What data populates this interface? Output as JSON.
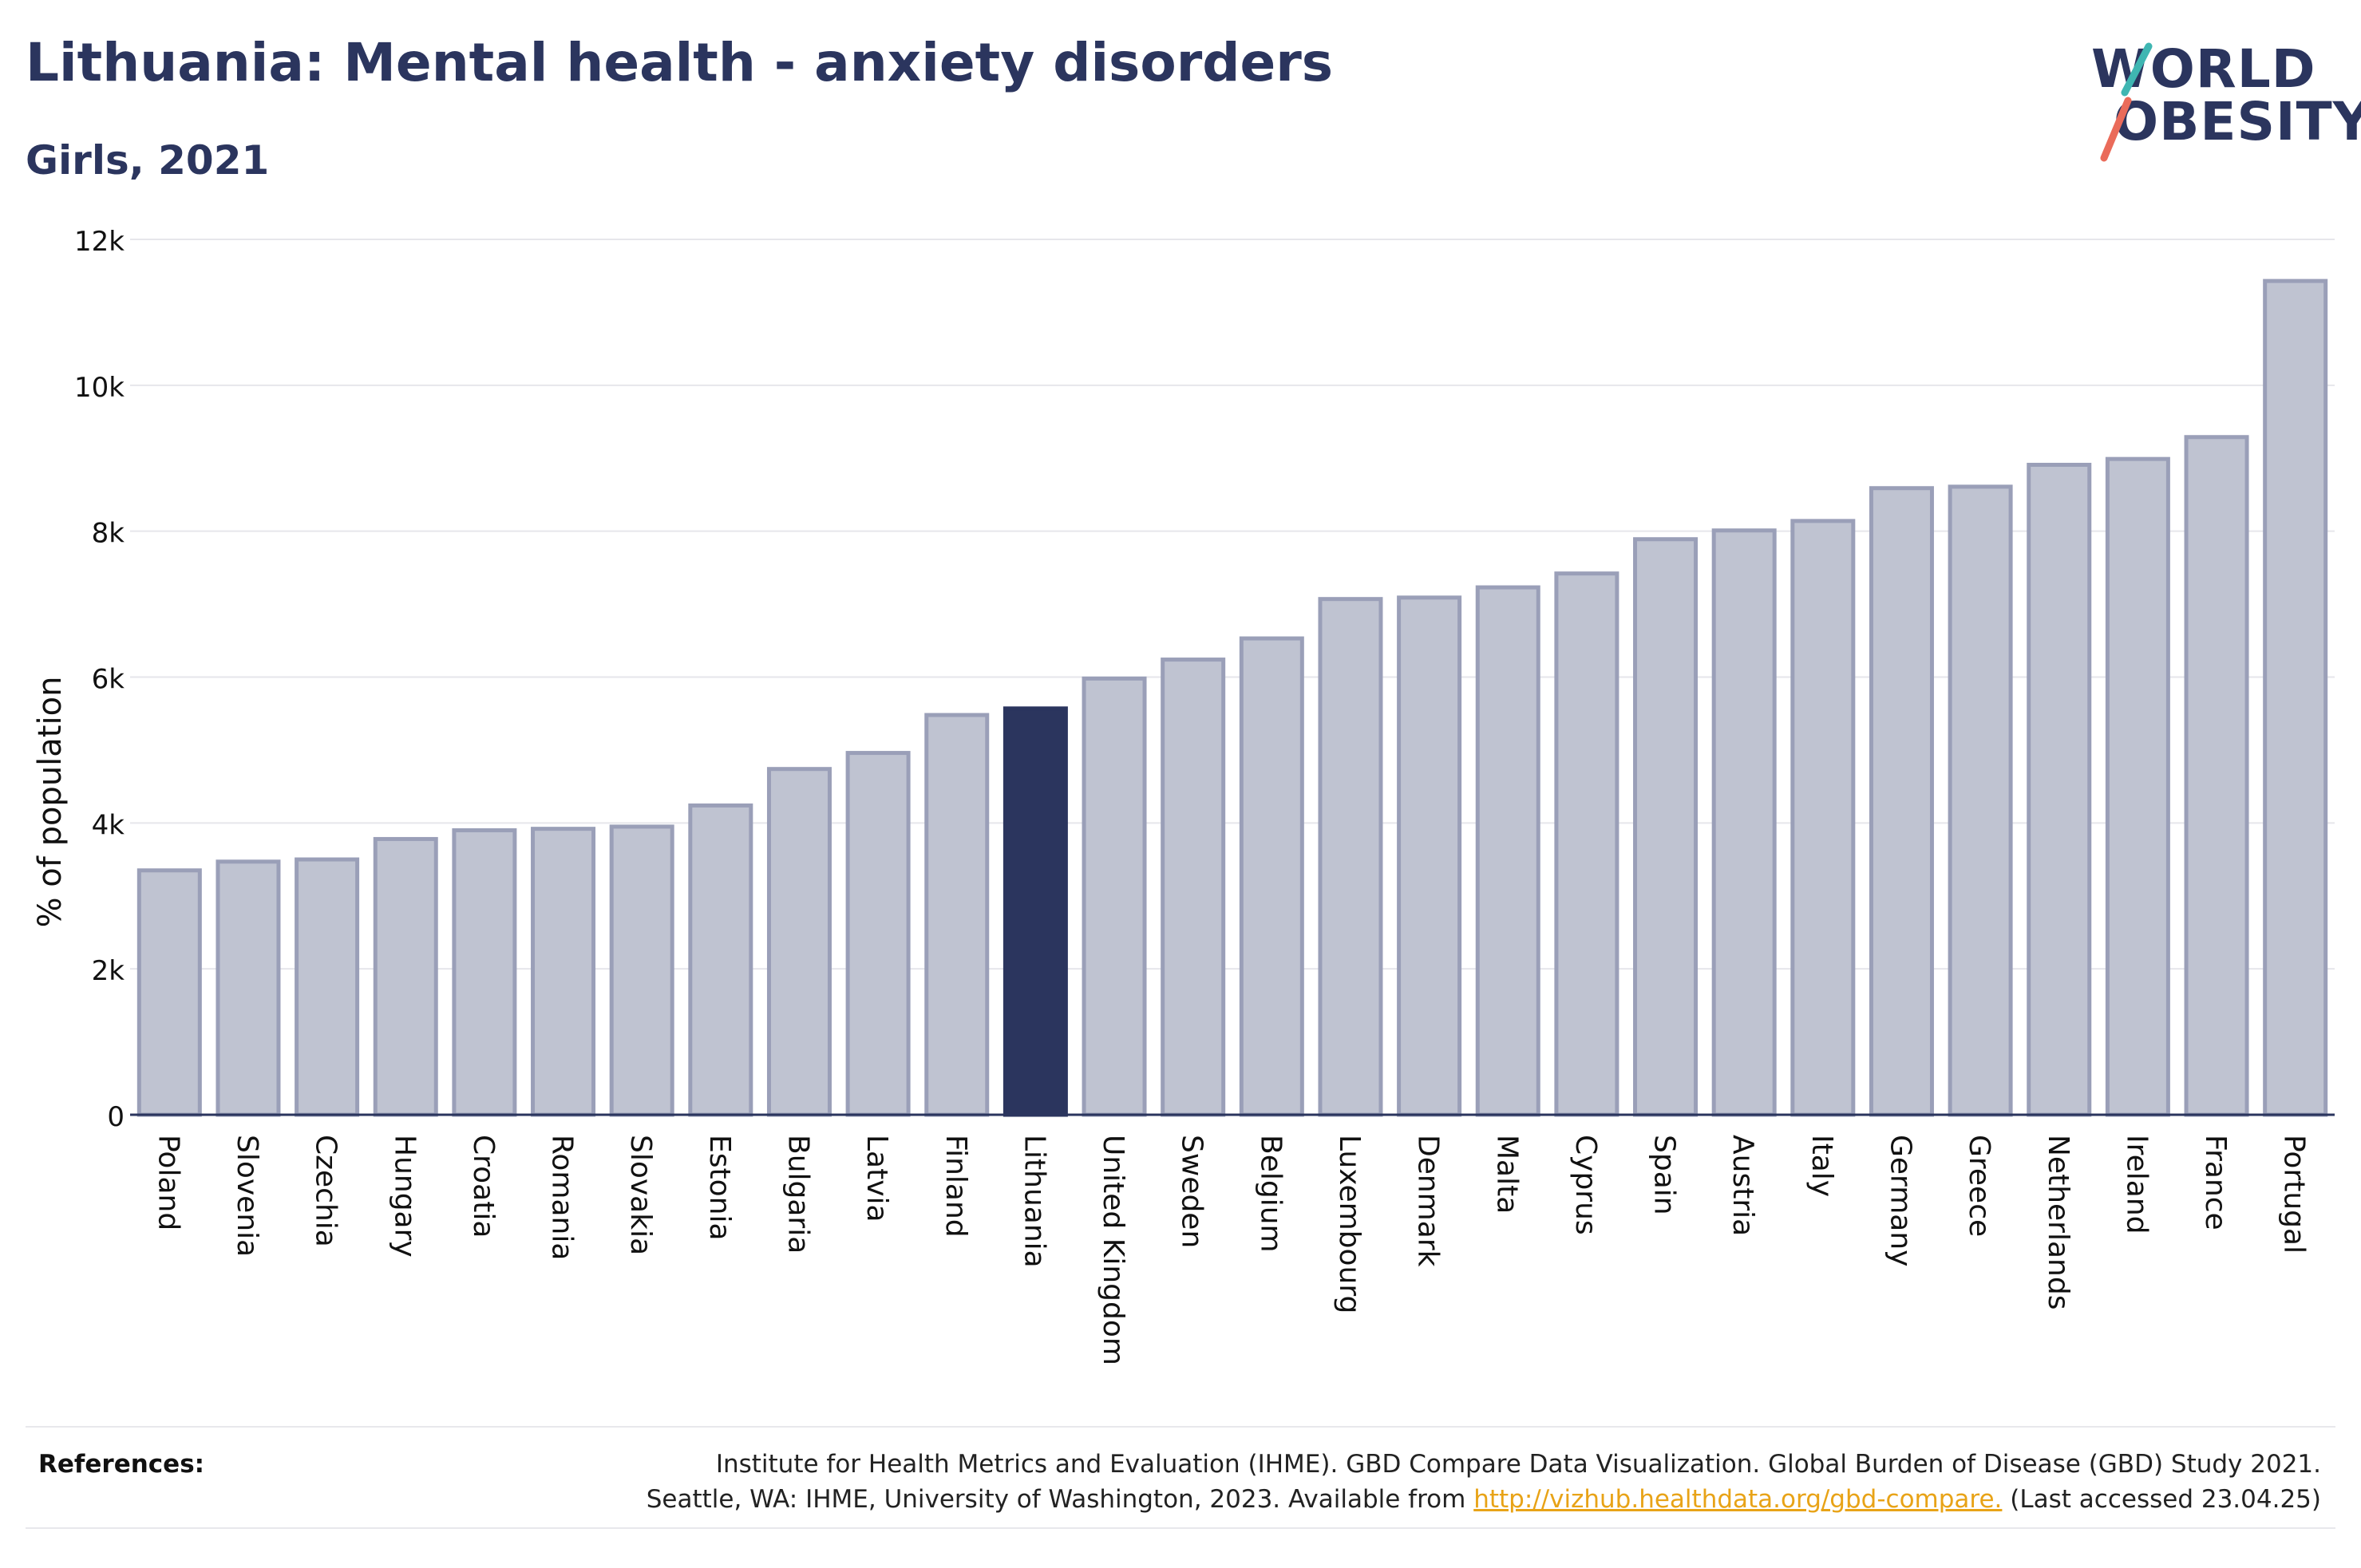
{
  "header": {
    "title": "Lithuania: Mental health - anxiety disorders",
    "subtitle": "Girls, 2021"
  },
  "logo": {
    "line1": "WORLD",
    "line2": "OBESITY"
  },
  "references": {
    "label": "References:",
    "line1": "Institute for Health Metrics and Evaluation (IHME). GBD Compare Data Visualization. Global Burden of Disease (GBD) Study 2021.",
    "line2_prefix": "Seattle, WA: IHME, University of Washington, 2023. Available from ",
    "link": "http://vizhub.healthdata.org/gbd-compare.",
    "line2_suffix": " (Last accessed 23.04.25)"
  },
  "colors": {
    "highlight": "#2b355e",
    "bar": "#bfc3d1",
    "bar_edge": "#9a9fb8",
    "grid": "#e6e6eb",
    "link": "#e8a317",
    "logo_teal": "#3fb6b2",
    "logo_coral": "#ea6b5a"
  },
  "chart_data": {
    "type": "bar",
    "title": "Lithuania: Mental health - anxiety disorders",
    "subtitle": "Girls, 2021",
    "xlabel": "",
    "ylabel": "% of population",
    "ylim": [
      0,
      12000
    ],
    "yticks": [
      0,
      2000,
      4000,
      6000,
      8000,
      10000,
      12000
    ],
    "ytick_labels": [
      "0",
      "2k",
      "4k",
      "6k",
      "8k",
      "10k",
      "12k"
    ],
    "grid": true,
    "highlight": "Lithuania",
    "categories": [
      "Poland",
      "Slovenia",
      "Czechia",
      "Hungary",
      "Croatia",
      "Romania",
      "Slovakia",
      "Estonia",
      "Bulgaria",
      "Latvia",
      "Finland",
      "Lithuania",
      "United Kingdom",
      "Sweden",
      "Belgium",
      "Luxembourg",
      "Denmark",
      "Malta",
      "Cyprus",
      "Spain",
      "Austria",
      "Italy",
      "Germany",
      "Greece",
      "Netherlands",
      "Ireland",
      "France",
      "Portugal"
    ],
    "values": [
      3350,
      3470,
      3500,
      3780,
      3900,
      3920,
      3950,
      4240,
      4740,
      4960,
      5480,
      5570,
      5980,
      6240,
      6530,
      7070,
      7090,
      7230,
      7420,
      7890,
      8010,
      8140,
      8590,
      8610,
      8910,
      8990,
      9290,
      11430
    ]
  }
}
